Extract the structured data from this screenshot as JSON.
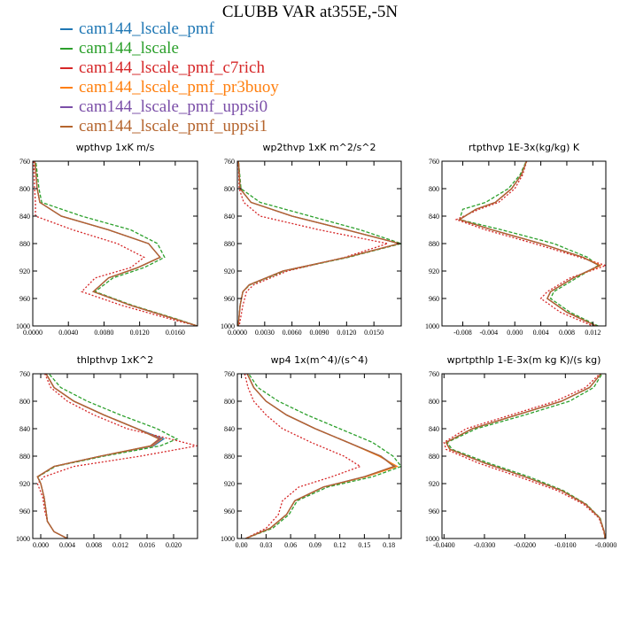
{
  "title": "CLUBB VAR at355E,-5N",
  "chart_data": [
    {
      "type": "line",
      "title": "wpthvp   1xK m/s",
      "xlim": [
        0,
        0.0185
      ],
      "ylim": [
        760,
        1000
      ],
      "xticks": [
        "0.0000",
        "0.0040",
        "0.0080",
        "0.0120",
        "0.0160"
      ],
      "xtick_values": [
        0,
        0.004,
        0.008,
        0.012,
        0.016
      ],
      "yticks": [
        "760",
        "800",
        "840",
        "880",
        "920",
        "960",
        "1000"
      ],
      "y": [
        755,
        800,
        820,
        840,
        860,
        880,
        900,
        915,
        930,
        950,
        970,
        990,
        1000
      ],
      "series": [
        {
          "name": "cam144_lscale_pmf",
          "color": "#1f77b4",
          "x": [
            0.0002,
            0.0005,
            0.0008,
            0.0032,
            0.0085,
            0.013,
            0.0143,
            0.0118,
            0.0085,
            0.0068,
            0.011,
            0.016,
            0.0185
          ]
        },
        {
          "name": "cam144_lscale",
          "color": "#2ca02c",
          "x": [
            0.0003,
            0.0007,
            0.001,
            0.0055,
            0.011,
            0.014,
            0.0148,
            0.0125,
            0.009,
            0.007,
            0.0112,
            0.0162,
            0.0185
          ]
        },
        {
          "name": "cam144_lscale_pmf_c7rich",
          "color": "#d62728",
          "x": [
            0.0001,
            0.0002,
            0.0003,
            0.0003,
            0.0045,
            0.0095,
            0.0125,
            0.011,
            0.007,
            0.0055,
            0.01,
            0.0155,
            0.0185
          ]
        },
        {
          "name": "cam144_lscale_pmf_pr3buoy",
          "color": "#ff7f0e",
          "x": [
            0.0002,
            0.0005,
            0.0008,
            0.0032,
            0.0085,
            0.013,
            0.0143,
            0.0118,
            0.0085,
            0.0068,
            0.011,
            0.016,
            0.0185
          ]
        },
        {
          "name": "cam144_lscale_pmf_uppsi0",
          "color": "#7b4fa8",
          "x": [
            0.0002,
            0.0005,
            0.0008,
            0.0032,
            0.0085,
            0.013,
            0.0143,
            0.0118,
            0.0085,
            0.0068,
            0.011,
            0.016,
            0.0185
          ]
        },
        {
          "name": "cam144_lscale_pmf_uppsi1",
          "color": "#b5652e",
          "x": [
            0.0002,
            0.0005,
            0.0008,
            0.0032,
            0.0085,
            0.013,
            0.0143,
            0.0118,
            0.0085,
            0.0068,
            0.011,
            0.016,
            0.0185
          ]
        }
      ]
    },
    {
      "type": "line",
      "title": "wp2thvp   1xK m^2/s^2",
      "xlim": [
        0,
        0.018
      ],
      "ylim": [
        760,
        1000
      ],
      "xticks": [
        "0.0000",
        "0.0030",
        "0.0060",
        "0.0090",
        "0.0120",
        "0.0150"
      ],
      "xtick_values": [
        0,
        0.003,
        0.006,
        0.009,
        0.012,
        0.015
      ],
      "yticks": [
        "760",
        "800",
        "840",
        "880",
        "920",
        "960",
        "1000"
      ],
      "y": [
        755,
        800,
        820,
        840,
        860,
        880,
        900,
        920,
        940,
        950,
        970,
        1000
      ],
      "series": [
        {
          "name": "cam144_lscale_pmf",
          "color": "#1f77b4",
          "x": [
            0.0001,
            0.0003,
            0.0015,
            0.006,
            0.012,
            0.0178,
            0.012,
            0.005,
            0.0013,
            0.0006,
            0.0003,
            0.0001
          ]
        },
        {
          "name": "cam144_lscale",
          "color": "#2ca02c",
          "x": [
            0.0001,
            0.0004,
            0.0025,
            0.008,
            0.0135,
            0.018,
            0.0122,
            0.0052,
            0.0014,
            0.0006,
            0.0003,
            0.0001
          ]
        },
        {
          "name": "cam144_lscale_pmf_c7rich",
          "color": "#d62728",
          "x": [
            0.0001,
            0.0002,
            0.0007,
            0.0025,
            0.009,
            0.0165,
            0.0118,
            0.0055,
            0.0018,
            0.001,
            0.0006,
            0.0002
          ]
        },
        {
          "name": "cam144_lscale_pmf_pr3buoy",
          "color": "#ff7f0e",
          "x": [
            0.0001,
            0.0003,
            0.0015,
            0.006,
            0.012,
            0.0178,
            0.012,
            0.005,
            0.0013,
            0.0006,
            0.0003,
            0.0001
          ]
        },
        {
          "name": "cam144_lscale_pmf_uppsi0",
          "color": "#7b4fa8",
          "x": [
            0.0001,
            0.0003,
            0.0015,
            0.006,
            0.012,
            0.0178,
            0.012,
            0.005,
            0.0013,
            0.0006,
            0.0003,
            0.0001
          ]
        },
        {
          "name": "cam144_lscale_pmf_uppsi1",
          "color": "#b5652e",
          "x": [
            0.0001,
            0.0003,
            0.0015,
            0.006,
            0.012,
            0.0178,
            0.012,
            0.005,
            0.0013,
            0.0006,
            0.0003,
            0.0001
          ]
        }
      ]
    },
    {
      "type": "line",
      "title": "rtpthvp   1E-3x(kg/kg) K",
      "xlim": [
        -0.0112,
        0.014
      ],
      "ylim": [
        760,
        1000
      ],
      "xticks": [
        "-0.008",
        "-0.004",
        "0.000",
        "0.004",
        "0.008",
        "0.012"
      ],
      "xtick_values": [
        -0.008,
        -0.004,
        0,
        0.004,
        0.008,
        0.012
      ],
      "yticks": [
        "760",
        "800",
        "840",
        "880",
        "920",
        "960",
        "1000"
      ],
      "y": [
        755,
        780,
        800,
        820,
        830,
        845,
        860,
        880,
        900,
        912,
        930,
        950,
        960,
        980,
        1000
      ],
      "series": [
        {
          "name": "cam144_lscale_pmf",
          "color": "#1f77b4",
          "x": [
            0.002,
            0.001,
            -0.0005,
            -0.003,
            -0.006,
            -0.0085,
            -0.0035,
            0.004,
            0.0105,
            0.013,
            0.009,
            0.0055,
            0.005,
            0.008,
            0.0125
          ]
        },
        {
          "name": "cam144_lscale",
          "color": "#2ca02c",
          "x": [
            0.002,
            0.0008,
            -0.001,
            -0.0045,
            -0.008,
            -0.0085,
            -0.002,
            0.006,
            0.0112,
            0.0128,
            0.0095,
            0.006,
            0.0055,
            0.0085,
            0.0128
          ]
        },
        {
          "name": "cam144_lscale_pmf_c7rich",
          "color": "#d62728",
          "x": [
            0.002,
            0.0012,
            0.0,
            -0.0025,
            -0.0055,
            -0.009,
            -0.0045,
            0.003,
            0.01,
            0.014,
            0.0085,
            0.005,
            0.004,
            0.007,
            0.012
          ]
        },
        {
          "name": "cam144_lscale_pmf_pr3buoy",
          "color": "#ff7f0e",
          "x": [
            0.002,
            0.001,
            -0.0005,
            -0.003,
            -0.006,
            -0.0085,
            -0.0035,
            0.004,
            0.0105,
            0.0132,
            0.009,
            0.0055,
            0.005,
            0.008,
            0.0125
          ]
        },
        {
          "name": "cam144_lscale_pmf_uppsi0",
          "color": "#7b4fa8",
          "x": [
            0.002,
            0.001,
            -0.0005,
            -0.003,
            -0.006,
            -0.0085,
            -0.0035,
            0.004,
            0.0105,
            0.013,
            0.009,
            0.0055,
            0.005,
            0.008,
            0.0125
          ]
        },
        {
          "name": "cam144_lscale_pmf_uppsi1",
          "color": "#b5652e",
          "x": [
            0.002,
            0.001,
            -0.0005,
            -0.003,
            -0.006,
            -0.0085,
            -0.0035,
            0.004,
            0.0105,
            0.013,
            0.009,
            0.0055,
            0.005,
            0.008,
            0.0125
          ]
        }
      ]
    },
    {
      "type": "line",
      "title": "thlpthvp   1xK^2",
      "xlim": [
        -0.0012,
        0.0236
      ],
      "ylim": [
        760,
        1000
      ],
      "xticks": [
        "0.000",
        "0.004",
        "0.008",
        "0.012",
        "0.016",
        "0.020"
      ],
      "xtick_values": [
        0,
        0.004,
        0.008,
        0.012,
        0.016,
        0.02
      ],
      "yticks": [
        "760",
        "800",
        "840",
        "880",
        "920",
        "960",
        "1000"
      ],
      "y": [
        755,
        780,
        800,
        820,
        840,
        855,
        865,
        880,
        895,
        910,
        920,
        940,
        960,
        975,
        990,
        1000
      ],
      "series": [
        {
          "name": "cam144_lscale_pmf",
          "color": "#1f77b4",
          "x": [
            0.0005,
            0.002,
            0.005,
            0.0095,
            0.0145,
            0.0185,
            0.017,
            0.009,
            0.002,
            -0.0005,
            0.0,
            0.0005,
            0.0008,
            0.001,
            0.002,
            0.004
          ]
        },
        {
          "name": "cam144_lscale",
          "color": "#2ca02c",
          "x": [
            0.0008,
            0.003,
            0.007,
            0.012,
            0.0175,
            0.0205,
            0.018,
            0.0095,
            0.0022,
            -0.0004,
            0.0,
            0.0005,
            0.0008,
            0.001,
            0.002,
            0.004
          ]
        },
        {
          "name": "cam144_lscale_pmf_c7rich",
          "color": "#d62728",
          "x": [
            0.0004,
            0.0015,
            0.004,
            0.008,
            0.013,
            0.0195,
            0.0235,
            0.015,
            0.005,
            0.0005,
            -0.0005,
            0.0003,
            0.0006,
            0.001,
            0.002,
            0.004
          ]
        },
        {
          "name": "cam144_lscale_pmf_pr3buoy",
          "color": "#ff7f0e",
          "x": [
            0.0005,
            0.002,
            0.005,
            0.0095,
            0.0145,
            0.0182,
            0.0168,
            0.009,
            0.002,
            -0.0005,
            0.0,
            0.0005,
            0.0008,
            0.001,
            0.002,
            0.004
          ]
        },
        {
          "name": "cam144_lscale_pmf_uppsi0",
          "color": "#7b4fa8",
          "x": [
            0.0005,
            0.002,
            0.005,
            0.0095,
            0.0145,
            0.018,
            0.0166,
            0.009,
            0.002,
            -0.0005,
            0.0,
            0.0005,
            0.0008,
            0.001,
            0.002,
            0.004
          ]
        },
        {
          "name": "cam144_lscale_pmf_uppsi1",
          "color": "#b5652e",
          "x": [
            0.0005,
            0.002,
            0.005,
            0.0095,
            0.0145,
            0.0178,
            0.0165,
            0.009,
            0.002,
            -0.0005,
            0.0,
            0.0005,
            0.0008,
            0.001,
            0.002,
            0.004
          ]
        }
      ]
    },
    {
      "type": "line",
      "title": "wp4   1x(m^4)/(s^4)",
      "xlim": [
        -0.005,
        0.195
      ],
      "ylim": [
        760,
        1000
      ],
      "xticks": [
        "0.00",
        "0.03",
        "0.06",
        "0.09",
        "0.12",
        "0.15",
        "0.18"
      ],
      "xtick_values": [
        0,
        0.03,
        0.06,
        0.09,
        0.12,
        0.15,
        0.18
      ],
      "yticks": [
        "760",
        "800",
        "840",
        "880",
        "920",
        "960",
        "1000"
      ],
      "y": [
        755,
        780,
        800,
        820,
        840,
        860,
        880,
        895,
        910,
        925,
        945,
        965,
        985,
        1000
      ],
      "series": [
        {
          "name": "cam144_lscale_pmf",
          "color": "#1f77b4",
          "x": [
            0.005,
            0.015,
            0.03,
            0.055,
            0.09,
            0.13,
            0.17,
            0.188,
            0.15,
            0.1,
            0.065,
            0.055,
            0.035,
            0.005
          ]
        },
        {
          "name": "cam144_lscale",
          "color": "#2ca02c",
          "x": [
            0.006,
            0.02,
            0.045,
            0.08,
            0.12,
            0.16,
            0.185,
            0.195,
            0.16,
            0.105,
            0.068,
            0.058,
            0.038,
            0.005
          ]
        },
        {
          "name": "cam144_lscale_pmf_c7rich",
          "color": "#d62728",
          "x": [
            0.003,
            0.008,
            0.015,
            0.03,
            0.05,
            0.085,
            0.125,
            0.145,
            0.11,
            0.07,
            0.05,
            0.045,
            0.03,
            0.005
          ]
        },
        {
          "name": "cam144_lscale_pmf_pr3buoy",
          "color": "#ff7f0e",
          "x": [
            0.005,
            0.015,
            0.03,
            0.055,
            0.09,
            0.13,
            0.168,
            0.19,
            0.152,
            0.1,
            0.065,
            0.055,
            0.035,
            0.005
          ]
        },
        {
          "name": "cam144_lscale_pmf_uppsi0",
          "color": "#7b4fa8",
          "x": [
            0.005,
            0.015,
            0.03,
            0.055,
            0.09,
            0.13,
            0.17,
            0.186,
            0.15,
            0.1,
            0.065,
            0.055,
            0.035,
            0.005
          ]
        },
        {
          "name": "cam144_lscale_pmf_uppsi1",
          "color": "#b5652e",
          "x": [
            0.005,
            0.015,
            0.03,
            0.055,
            0.09,
            0.13,
            0.17,
            0.186,
            0.15,
            0.1,
            0.065,
            0.055,
            0.035,
            0.005
          ]
        }
      ]
    },
    {
      "type": "line",
      "title": "wprtpthlp   1-E-3x(m kg K)/(s kg)",
      "xlim": [
        -0.0405,
        0.0
      ],
      "ylim": [
        760,
        1000
      ],
      "xticks": [
        "-0.0400",
        "-0.0300",
        "-0.0200",
        "-0.0100",
        "-0.0000"
      ],
      "xtick_values": [
        -0.04,
        -0.03,
        -0.02,
        -0.01,
        0
      ],
      "yticks": [
        "760",
        "800",
        "840",
        "880",
        "920",
        "960",
        "1000"
      ],
      "y": [
        755,
        780,
        800,
        820,
        840,
        860,
        870,
        890,
        910,
        930,
        950,
        970,
        990,
        1000
      ],
      "series": [
        {
          "name": "cam144_lscale_pmf",
          "color": "#1f77b4",
          "x": [
            -0.0005,
            -0.004,
            -0.011,
            -0.022,
            -0.033,
            -0.0395,
            -0.0385,
            -0.03,
            -0.02,
            -0.011,
            -0.005,
            -0.0015,
            -0.0004,
            -0.0002
          ]
        },
        {
          "name": "cam144_lscale",
          "color": "#2ca02c",
          "x": [
            -0.0004,
            -0.003,
            -0.009,
            -0.02,
            -0.032,
            -0.0392,
            -0.038,
            -0.029,
            -0.019,
            -0.0105,
            -0.0048,
            -0.0014,
            -0.0004,
            -0.0002
          ]
        },
        {
          "name": "cam144_lscale_pmf_c7rich",
          "color": "#d62728",
          "x": [
            -0.0006,
            -0.005,
            -0.0125,
            -0.0235,
            -0.0345,
            -0.04,
            -0.0395,
            -0.0315,
            -0.0215,
            -0.012,
            -0.0055,
            -0.0017,
            -0.0005,
            -0.0002
          ]
        },
        {
          "name": "cam144_lscale_pmf_pr3buoy",
          "color": "#ff7f0e",
          "x": [
            -0.0005,
            -0.004,
            -0.011,
            -0.022,
            -0.033,
            -0.0395,
            -0.0386,
            -0.03,
            -0.02,
            -0.011,
            -0.005,
            -0.0015,
            -0.0004,
            -0.0002
          ]
        },
        {
          "name": "cam144_lscale_pmf_uppsi0",
          "color": "#7b4fa8",
          "x": [
            -0.0005,
            -0.004,
            -0.011,
            -0.022,
            -0.033,
            -0.0395,
            -0.0385,
            -0.03,
            -0.02,
            -0.011,
            -0.005,
            -0.0015,
            -0.0004,
            -0.0002
          ]
        },
        {
          "name": "cam144_lscale_pmf_uppsi1",
          "color": "#b5652e",
          "x": [
            -0.0005,
            -0.004,
            -0.011,
            -0.022,
            -0.033,
            -0.0395,
            -0.0385,
            -0.03,
            -0.02,
            -0.011,
            -0.005,
            -0.0015,
            -0.0004,
            -0.0002
          ]
        }
      ]
    }
  ],
  "series_styles": [
    "solid",
    "dashed",
    "dotted",
    "solid",
    "solid",
    "solid"
  ]
}
